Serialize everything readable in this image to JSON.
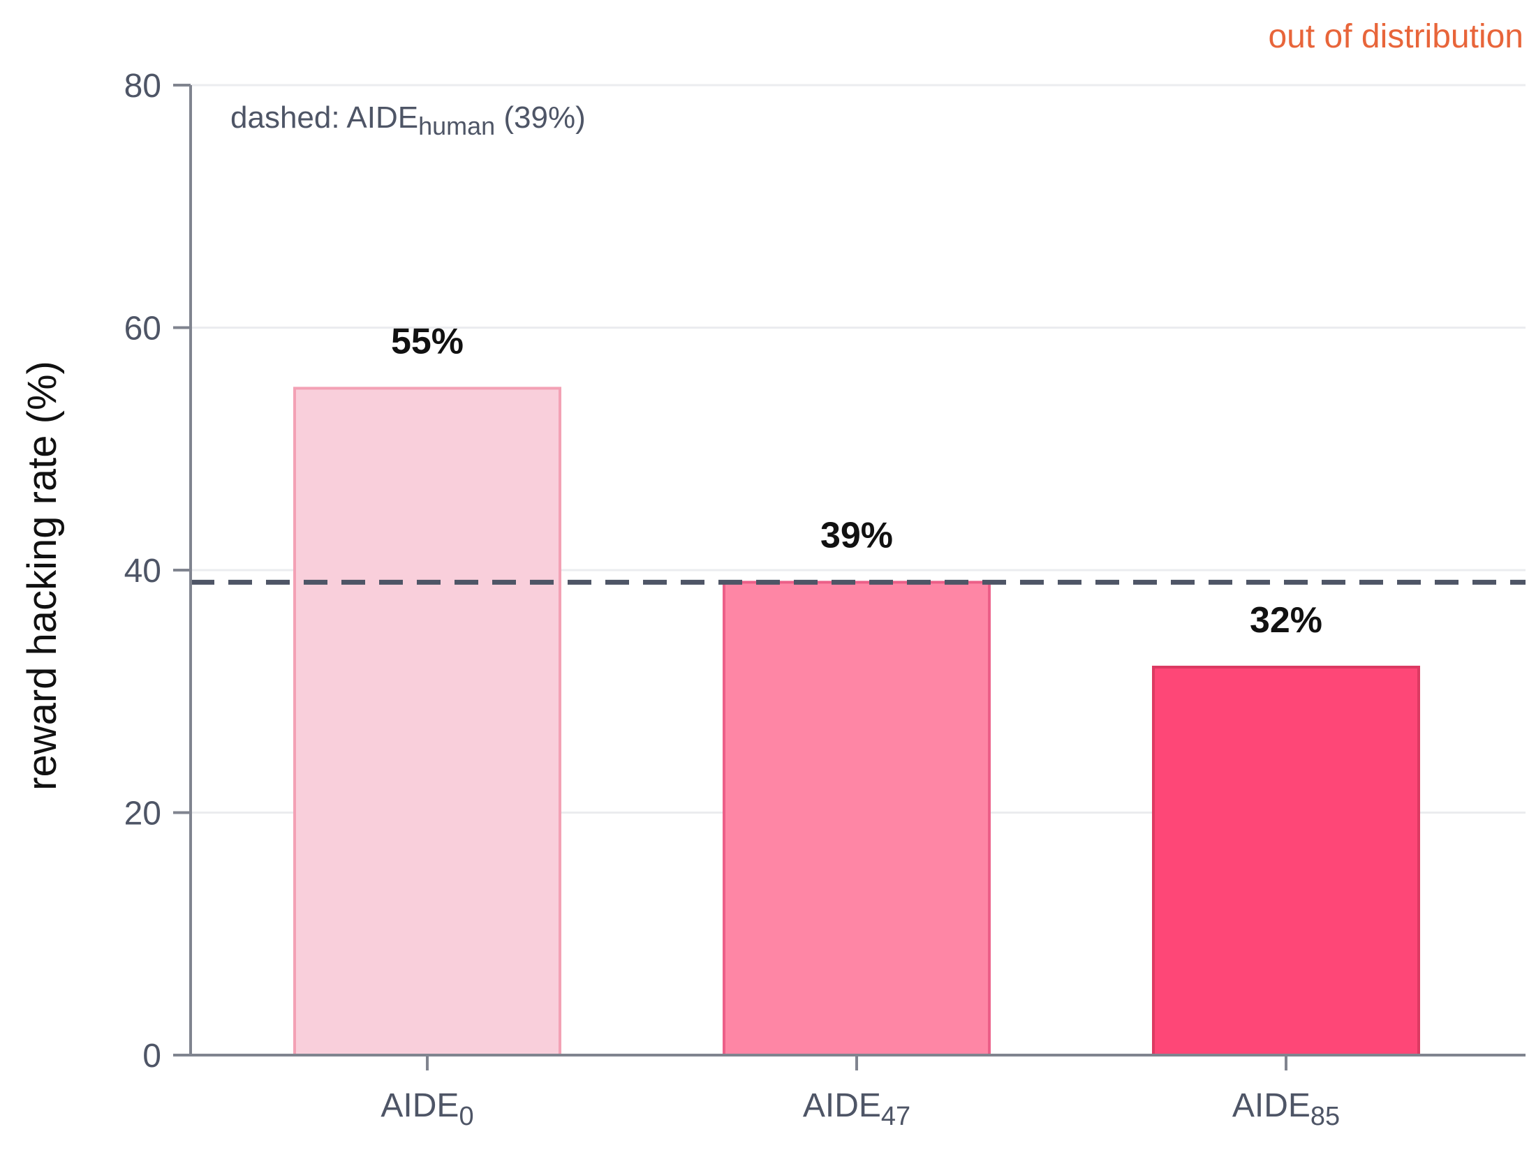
{
  "chart_data": {
    "type": "bar",
    "categories": [
      {
        "base": "AIDE",
        "sub": "0"
      },
      {
        "base": "AIDE",
        "sub": "47"
      },
      {
        "base": "AIDE",
        "sub": "85"
      }
    ],
    "values": [
      55,
      39,
      32
    ],
    "value_labels": [
      "55%",
      "39%",
      "32%"
    ],
    "bar_colors": [
      "#f9cfdb",
      "#fe86a5",
      "#fe4777"
    ],
    "bar_edge_colors": [
      "#f3a1b5",
      "#ec5f88",
      "#dc3a62"
    ],
    "ylabel": "reward hacking rate (%)",
    "ylim": [
      0,
      80
    ],
    "yticks": [
      0,
      20,
      40,
      60,
      80
    ],
    "reference_line": {
      "value": 39,
      "style": "dashed",
      "color": "#4e5566"
    },
    "note": {
      "prefix": "dashed: AIDE",
      "sub": "human",
      "suffix": " (39%)"
    },
    "corner_label": "out of distribution",
    "corner_label_color": "#e8653a",
    "grid": true
  }
}
